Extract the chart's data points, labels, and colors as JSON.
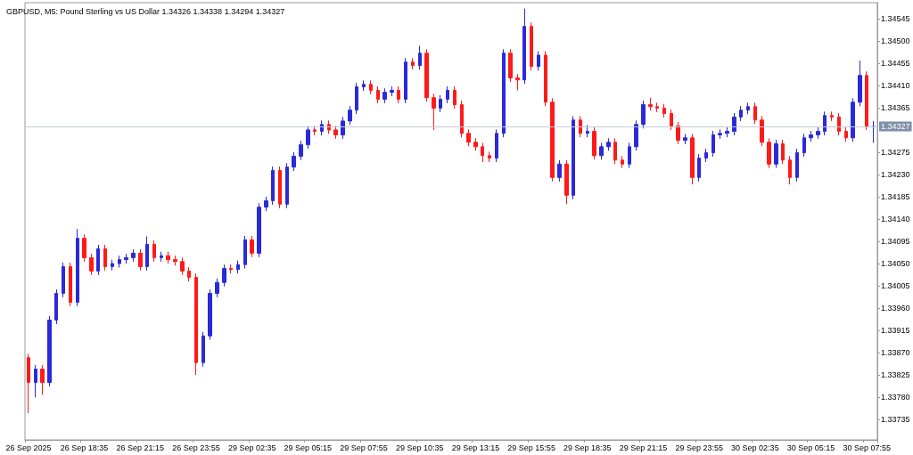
{
  "chart_data": {
    "type": "candlestick",
    "title": "GBPUSD, M5: Pound Sterling vs US Dollar 1.34326 1.34338 1.34294 1.34327",
    "categories": [
      "26 Sep 2025",
      null,
      null,
      null,
      null,
      null,
      null,
      null,
      "26 Sep 18:35",
      null,
      null,
      null,
      null,
      null,
      null,
      null,
      "26 Sep 21:15",
      null,
      null,
      null,
      null,
      null,
      null,
      null,
      "26 Sep 23:55",
      null,
      null,
      null,
      null,
      null,
      null,
      null,
      "29 Sep 02:35",
      null,
      null,
      null,
      null,
      null,
      null,
      null,
      "29 Sep 05:15",
      null,
      null,
      null,
      null,
      null,
      null,
      null,
      "29 Sep 07:55",
      null,
      null,
      null,
      null,
      null,
      null,
      null,
      "29 Sep 10:35",
      null,
      null,
      null,
      null,
      null,
      null,
      null,
      "29 Sep 13:15",
      null,
      null,
      null,
      null,
      null,
      null,
      null,
      "29 Sep 15:55",
      null,
      null,
      null,
      null,
      null,
      null,
      null,
      "29 Sep 18:35",
      null,
      null,
      null,
      null,
      null,
      null,
      null,
      "29 Sep 21:15",
      null,
      null,
      null,
      null,
      null,
      null,
      null,
      "29 Sep 23:55",
      null,
      null,
      null,
      null,
      null,
      null,
      null,
      "30 Sep 02:35",
      null,
      null,
      null,
      null,
      null,
      null,
      null,
      "30 Sep 05:15",
      null,
      null,
      null,
      null,
      null,
      null,
      null,
      "30 Sep 07:55",
      null
    ],
    "ohlc": [
      [
        1.3386,
        1.33868,
        1.33748,
        1.3381
      ],
      [
        1.3381,
        1.33845,
        1.3378,
        1.33837
      ],
      [
        1.33837,
        1.33845,
        1.33785,
        1.3381
      ],
      [
        1.3381,
        1.33944,
        1.33802,
        1.33936
      ],
      [
        1.33936,
        1.33998,
        1.33928,
        1.3399
      ],
      [
        1.3399,
        1.34052,
        1.33982,
        1.34044
      ],
      [
        1.34044,
        1.34052,
        1.33964,
        1.33972
      ],
      [
        1.33972,
        1.3412,
        1.33964,
        1.34101
      ],
      [
        1.34101,
        1.34109,
        1.34054,
        1.34062
      ],
      [
        1.34062,
        1.3407,
        1.34027,
        1.34035
      ],
      [
        1.34035,
        1.34088,
        1.34027,
        1.3408
      ],
      [
        1.3408,
        1.34088,
        1.34036,
        1.34044
      ],
      [
        1.34044,
        1.34058,
        1.34036,
        1.3405
      ],
      [
        1.3405,
        1.34066,
        1.34042,
        1.34058
      ],
      [
        1.34058,
        1.3407,
        1.3405,
        1.34062
      ],
      [
        1.34062,
        1.34079,
        1.34054,
        1.34071
      ],
      [
        1.34071,
        1.34079,
        1.34036,
        1.34044
      ],
      [
        1.34044,
        1.34105,
        1.34036,
        1.34089
      ],
      [
        1.34089,
        1.34097,
        1.34054,
        1.34062
      ],
      [
        1.34062,
        1.34074,
        1.34054,
        1.34066
      ],
      [
        1.34066,
        1.34074,
        1.3405,
        1.34058
      ],
      [
        1.34058,
        1.34066,
        1.34046,
        1.34054
      ],
      [
        1.34054,
        1.34062,
        1.34027,
        1.34035
      ],
      [
        1.34035,
        1.34043,
        1.34014,
        1.34022
      ],
      [
        1.34022,
        1.3403,
        1.33825,
        1.3385
      ],
      [
        1.3385,
        1.33912,
        1.33842,
        1.33904
      ],
      [
        1.33904,
        1.33998,
        1.33896,
        1.3399
      ],
      [
        1.3399,
        1.3402,
        1.33982,
        1.34012
      ],
      [
        1.34012,
        1.34048,
        1.34004,
        1.3404
      ],
      [
        1.3404,
        1.34048,
        1.3403,
        1.34038
      ],
      [
        1.34038,
        1.34056,
        1.3403,
        1.34048
      ],
      [
        1.34048,
        1.34106,
        1.3404,
        1.34098
      ],
      [
        1.34098,
        1.34106,
        1.34063,
        1.34071
      ],
      [
        1.34071,
        1.34172,
        1.34063,
        1.34164
      ],
      [
        1.34164,
        1.34185,
        1.34156,
        1.34177
      ],
      [
        1.34177,
        1.34246,
        1.34169,
        1.34238
      ],
      [
        1.34238,
        1.34246,
        1.34162,
        1.3417
      ],
      [
        1.3417,
        1.34253,
        1.34162,
        1.34245
      ],
      [
        1.34245,
        1.34275,
        1.34237,
        1.34267
      ],
      [
        1.34267,
        1.34298,
        1.34259,
        1.3429
      ],
      [
        1.3429,
        1.34328,
        1.34282,
        1.3432
      ],
      [
        1.3432,
        1.34328,
        1.34309,
        1.34317
      ],
      [
        1.34317,
        1.34339,
        1.34309,
        1.34331
      ],
      [
        1.34331,
        1.34339,
        1.34312,
        1.3432
      ],
      [
        1.3432,
        1.34328,
        1.34302,
        1.3431
      ],
      [
        1.3431,
        1.34346,
        1.34302,
        1.34338
      ],
      [
        1.34338,
        1.34368,
        1.3433,
        1.3436
      ],
      [
        1.3436,
        1.34415,
        1.34352,
        1.34407
      ],
      [
        1.34407,
        1.3442,
        1.34399,
        1.34412
      ],
      [
        1.34412,
        1.3442,
        1.34392,
        1.344
      ],
      [
        1.344,
        1.34408,
        1.34374,
        1.34382
      ],
      [
        1.34382,
        1.34404,
        1.34374,
        1.34396
      ],
      [
        1.34396,
        1.34408,
        1.34388,
        1.344
      ],
      [
        1.344,
        1.34408,
        1.34374,
        1.34382
      ],
      [
        1.34382,
        1.34465,
        1.34374,
        1.34457
      ],
      [
        1.34457,
        1.34465,
        1.34442,
        1.3445
      ],
      [
        1.3445,
        1.3449,
        1.34442,
        1.34475
      ],
      [
        1.34475,
        1.34483,
        1.34377,
        1.34385
      ],
      [
        1.34385,
        1.34393,
        1.3432,
        1.34364
      ],
      [
        1.34364,
        1.3439,
        1.34356,
        1.34382
      ],
      [
        1.34382,
        1.34408,
        1.34374,
        1.344
      ],
      [
        1.344,
        1.34408,
        1.34363,
        1.34371
      ],
      [
        1.34371,
        1.34379,
        1.34305,
        1.34313
      ],
      [
        1.34313,
        1.34321,
        1.34287,
        1.34295
      ],
      [
        1.34295,
        1.34303,
        1.34278,
        1.34286
      ],
      [
        1.34286,
        1.34294,
        1.34255,
        1.34268
      ],
      [
        1.34268,
        1.34276,
        1.34255,
        1.34263
      ],
      [
        1.34263,
        1.34321,
        1.34255,
        1.34313
      ],
      [
        1.34313,
        1.34483,
        1.34305,
        1.34475
      ],
      [
        1.34475,
        1.34483,
        1.34417,
        1.34425
      ],
      [
        1.34425,
        1.34433,
        1.344,
        1.34421
      ],
      [
        1.34421,
        1.34565,
        1.34413,
        1.34529
      ],
      [
        1.34529,
        1.34537,
        1.3444,
        1.34448
      ],
      [
        1.34448,
        1.34479,
        1.3444,
        1.34471
      ],
      [
        1.34471,
        1.34479,
        1.34368,
        1.34376
      ],
      [
        1.34376,
        1.34384,
        1.34216,
        1.34224
      ],
      [
        1.34224,
        1.34259,
        1.34216,
        1.34251
      ],
      [
        1.34251,
        1.34259,
        1.3417,
        1.34188
      ],
      [
        1.34188,
        1.34348,
        1.3418,
        1.3434
      ],
      [
        1.3434,
        1.34348,
        1.34305,
        1.34313
      ],
      [
        1.34313,
        1.3433,
        1.34305,
        1.34317
      ],
      [
        1.34317,
        1.34325,
        1.3426,
        1.34268
      ],
      [
        1.34268,
        1.34294,
        1.3426,
        1.34286
      ],
      [
        1.34286,
        1.34303,
        1.34278,
        1.34295
      ],
      [
        1.34295,
        1.34303,
        1.34251,
        1.34259
      ],
      [
        1.34259,
        1.34267,
        1.34243,
        1.34251
      ],
      [
        1.34251,
        1.34294,
        1.34243,
        1.34286
      ],
      [
        1.34286,
        1.34339,
        1.34278,
        1.34331
      ],
      [
        1.34331,
        1.34379,
        1.34323,
        1.34371
      ],
      [
        1.34371,
        1.34385,
        1.34359,
        1.34367
      ],
      [
        1.34367,
        1.34375,
        1.34356,
        1.34364
      ],
      [
        1.34364,
        1.34372,
        1.34345,
        1.34353
      ],
      [
        1.34353,
        1.34361,
        1.3432,
        1.34328
      ],
      [
        1.34328,
        1.34336,
        1.34291,
        1.34299
      ],
      [
        1.34299,
        1.34312,
        1.34291,
        1.34304
      ],
      [
        1.34304,
        1.34312,
        1.3421,
        1.34224
      ],
      [
        1.34224,
        1.34271,
        1.34216,
        1.34263
      ],
      [
        1.34263,
        1.34282,
        1.34255,
        1.34274
      ],
      [
        1.34274,
        1.34318,
        1.34266,
        1.3431
      ],
      [
        1.3431,
        1.34321,
        1.34302,
        1.34313
      ],
      [
        1.34313,
        1.34325,
        1.34305,
        1.34317
      ],
      [
        1.34317,
        1.34354,
        1.34309,
        1.34346
      ],
      [
        1.34346,
        1.34368,
        1.34338,
        1.3436
      ],
      [
        1.3436,
        1.34375,
        1.34352,
        1.34367
      ],
      [
        1.34367,
        1.34375,
        1.34332,
        1.3434
      ],
      [
        1.3434,
        1.34348,
        1.34287,
        1.34295
      ],
      [
        1.34295,
        1.34303,
        1.34243,
        1.34251
      ],
      [
        1.34251,
        1.343,
        1.34243,
        1.34292
      ],
      [
        1.34292,
        1.343,
        1.34251,
        1.34259
      ],
      [
        1.34259,
        1.34267,
        1.3421,
        1.34224
      ],
      [
        1.34224,
        1.34282,
        1.34216,
        1.34274
      ],
      [
        1.34274,
        1.34312,
        1.34266,
        1.34304
      ],
      [
        1.34304,
        1.34318,
        1.34296,
        1.3431
      ],
      [
        1.3431,
        1.34325,
        1.34302,
        1.34317
      ],
      [
        1.34317,
        1.34357,
        1.34309,
        1.34349
      ],
      [
        1.34349,
        1.34357,
        1.34338,
        1.34346
      ],
      [
        1.34346,
        1.34354,
        1.34309,
        1.34317
      ],
      [
        1.34317,
        1.34325,
        1.34296,
        1.34304
      ],
      [
        1.34304,
        1.34384,
        1.34296,
        1.34376
      ],
      [
        1.34376,
        1.3446,
        1.34368,
        1.3443
      ],
      [
        1.3443,
        1.34438,
        1.3432,
        1.34326
      ],
      [
        1.34326,
        1.34338,
        1.34294,
        1.34327
      ]
    ],
    "colors": [
      "#ff1a1a",
      "#2a2ad8",
      "#ff1a1a",
      "#2a2ad8",
      "#2a2ad8",
      "#2a2ad8",
      "#ff1a1a",
      "#2a2ad8",
      "#ff1a1a",
      "#ff1a1a",
      "#2a2ad8",
      "#ff1a1a",
      "#2a2ad8",
      "#2a2ad8",
      "#2a2ad8",
      "#2a2ad8",
      "#ff1a1a",
      "#2a2ad8",
      "#ff1a1a",
      "#2a2ad8",
      "#ff1a1a",
      "#ff1a1a",
      "#ff1a1a",
      "#ff1a1a",
      "#ff1a1a",
      "#2a2ad8",
      "#2a2ad8",
      "#2a2ad8",
      "#2a2ad8",
      "#ff1a1a",
      "#2a2ad8",
      "#2a2ad8",
      "#ff1a1a",
      "#2a2ad8",
      "#2a2ad8",
      "#2a2ad8",
      "#ff1a1a",
      "#2a2ad8",
      "#2a2ad8",
      "#2a2ad8",
      "#2a2ad8",
      "#ff1a1a",
      "#2a2ad8",
      "#ff1a1a",
      "#ff1a1a",
      "#2a2ad8",
      "#2a2ad8",
      "#2a2ad8",
      "#2a2ad8",
      "#ff1a1a",
      "#ff1a1a",
      "#2a2ad8",
      "#2a2ad8",
      "#ff1a1a",
      "#2a2ad8",
      "#ff1a1a",
      "#2a2ad8",
      "#ff1a1a",
      "#ff1a1a",
      "#2a2ad8",
      "#2a2ad8",
      "#ff1a1a",
      "#ff1a1a",
      "#ff1a1a",
      "#ff1a1a",
      "#ff1a1a",
      "#ff1a1a",
      "#2a2ad8",
      "#2a2ad8",
      "#ff1a1a",
      "#ff1a1a",
      "#2a2ad8",
      "#ff1a1a",
      "#2a2ad8",
      "#ff1a1a",
      "#ff1a1a",
      "#2a2ad8",
      "#ff1a1a",
      "#2a2ad8",
      "#ff1a1a",
      "#2a2ad8",
      "#ff1a1a",
      "#2a2ad8",
      "#2a2ad8",
      "#ff1a1a",
      "#ff1a1a",
      "#2a2ad8",
      "#2a2ad8",
      "#2a2ad8",
      "#ff1a1a",
      "#ff1a1a",
      "#ff1a1a",
      "#ff1a1a",
      "#ff1a1a",
      "#2a2ad8",
      "#ff1a1a",
      "#2a2ad8",
      "#2a2ad8",
      "#2a2ad8",
      "#2a2ad8",
      "#2a2ad8",
      "#2a2ad8",
      "#2a2ad8",
      "#2a2ad8",
      "#ff1a1a",
      "#ff1a1a",
      "#ff1a1a",
      "#2a2ad8",
      "#ff1a1a",
      "#ff1a1a",
      "#2a2ad8",
      "#2a2ad8",
      "#2a2ad8",
      "#2a2ad8",
      "#2a2ad8",
      "#ff1a1a",
      "#ff1a1a",
      "#ff1a1a",
      "#2a2ad8",
      "#2a2ad8",
      "#ff1a1a",
      "#2a2ad8"
    ],
    "ylim": [
      1.33694,
      1.34577
    ],
    "yticks": [
      1.33735,
      {
        "value": 1.3378,
        "label": "1.33780"
      },
      1.33825,
      {
        "value": 1.3387,
        "label": "1.33870"
      },
      1.33915,
      {
        "value": 1.3396,
        "label": "1.33960"
      },
      1.34005,
      {
        "value": 1.3405,
        "label": "1.34050"
      },
      1.34095,
      {
        "value": 1.3414,
        "label": "1.34140"
      },
      1.34185,
      {
        "value": 1.3423,
        "label": "1.34230"
      },
      1.34275,
      1.34365,
      {
        "value": 1.3441,
        "label": "1.34410"
      },
      1.34455,
      {
        "value": 1.345,
        "label": "1.34500"
      },
      1.34545
    ],
    "ref_lines": [
      {
        "axis": "y",
        "value": 1.34327,
        "label": "1.34327",
        "color": "#c4ccd4"
      }
    ],
    "grid": false
  }
}
